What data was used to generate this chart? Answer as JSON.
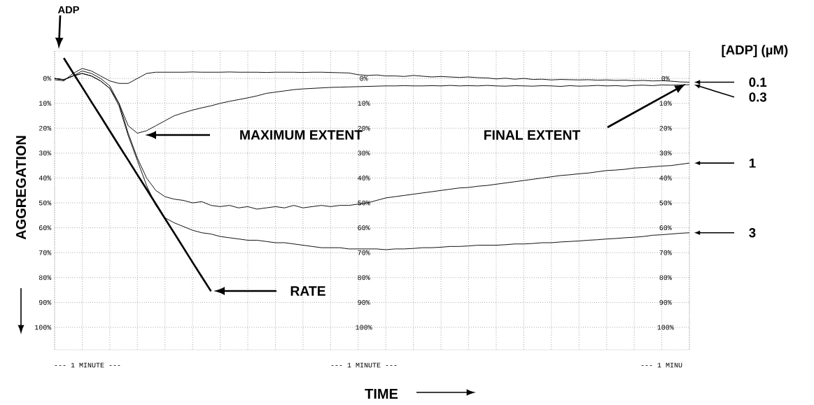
{
  "chart_data": {
    "type": "line",
    "xlabel": "TIME",
    "ylabel": "AGGREGATION",
    "legend_title": "[ADP] (µM)",
    "categories": [
      null,
      null,
      null,
      null,
      null,
      null,
      null,
      null,
      null,
      null,
      null,
      null,
      null,
      null,
      null,
      null,
      null,
      null,
      null,
      null,
      null,
      null,
      null,
      null,
      null,
      null,
      null,
      null,
      null,
      null,
      null,
      null,
      null,
      null,
      null,
      null,
      null,
      null,
      null,
      null,
      null,
      null,
      null,
      null,
      null,
      null,
      null,
      null,
      null,
      null,
      null,
      null,
      null,
      null,
      null,
      null,
      null,
      null,
      null,
      null,
      null,
      null,
      null,
      null,
      null,
      null,
      null,
      null,
      null,
      null
    ],
    "series": [
      {
        "name": "0.1",
        "color": "#000000",
        "values": [
          0.5,
          1,
          -2,
          -4,
          -3,
          -1,
          1,
          2,
          2,
          0,
          -2,
          -2.5,
          -2.5,
          -2.5,
          -2.5,
          -2.6,
          -2.5,
          -2.5,
          -2.5,
          -2.6,
          -2.5,
          -2.5,
          -2.5,
          -2.4,
          -2.5,
          -2.5,
          -2.5,
          -2.4,
          -2.5,
          -2.5,
          -2.4,
          -2.3,
          -2.2,
          -1.5,
          -1.2,
          -1.4,
          -1.0,
          -1.0,
          -0.8,
          -1.2,
          -0.9,
          -0.6,
          -0.8,
          -0.6,
          -0.4,
          -0.6,
          -0.3,
          -0.2,
          0.2,
          -0.1,
          0.3,
          0.0,
          0.4,
          0.3,
          0.6,
          0.4,
          0.5,
          0.6,
          0.5,
          0.7,
          0.6,
          0.8,
          0.7,
          0.9,
          0.8,
          1.0,
          0.9,
          1.1,
          1.4,
          1.5
        ]
      },
      {
        "name": "0.3",
        "color": "#000000",
        "values": [
          0,
          0.5,
          -1,
          -2,
          -1,
          1,
          4,
          10,
          19,
          22,
          21,
          19,
          17,
          15,
          13.8,
          12.7,
          11.8,
          11,
          10,
          9.2,
          8.5,
          7.8,
          7,
          6,
          5.5,
          5,
          4.5,
          4.2,
          4,
          3.8,
          3.6,
          3.5,
          3.4,
          3.3,
          3.2,
          3.1,
          3.0,
          3.0,
          2.9,
          3.0,
          3.0,
          2.9,
          3.0,
          2.8,
          3.0,
          2.9,
          3.0,
          2.8,
          3.0,
          3.1,
          2.9,
          3.0,
          3.1,
          2.9,
          3.0,
          3.2,
          2.9,
          3.1,
          3.0,
          2.8,
          3.0,
          2.9,
          3.1,
          2.8,
          2.7,
          2.9,
          2.6,
          2.7,
          2.6,
          2.5
        ]
      },
      {
        "name": "1",
        "color": "#000000",
        "values": [
          0,
          0.5,
          -1,
          -3,
          -2,
          0,
          3,
          10,
          22,
          32,
          40,
          45,
          47.5,
          48.5,
          49,
          50,
          49.5,
          51,
          51.5,
          51,
          52,
          51.5,
          52.5,
          52,
          51.5,
          52,
          51,
          52,
          51.5,
          51,
          51.5,
          51,
          51,
          50.5,
          50,
          49,
          48,
          47.5,
          47,
          46.5,
          46,
          45.5,
          45,
          44.5,
          44,
          43.8,
          43.3,
          43,
          42.5,
          42,
          41.5,
          41,
          40.5,
          40,
          39.5,
          39,
          38.7,
          38.3,
          38,
          37.5,
          37,
          36.8,
          36.5,
          36,
          35.8,
          35.5,
          35.2,
          35,
          34.5,
          34
        ]
      },
      {
        "name": "3",
        "color": "#000000",
        "values": [
          0,
          0.5,
          -1,
          -2,
          -1,
          1,
          4,
          11,
          23,
          33,
          43,
          51,
          56,
          58,
          59.5,
          61,
          62,
          62.5,
          63.5,
          64,
          64.5,
          65,
          65,
          65.5,
          66,
          66,
          66.5,
          67,
          67.5,
          68,
          68,
          68,
          68.5,
          68.5,
          68.5,
          68.5,
          68.8,
          68.5,
          68.5,
          68.3,
          68,
          68,
          67.8,
          67.5,
          67.5,
          67.3,
          67,
          67,
          67,
          66.8,
          66.5,
          66.5,
          66.3,
          66,
          66,
          65.7,
          65.5,
          65.3,
          65,
          64.8,
          64.5,
          64.3,
          64,
          63.8,
          63.5,
          63,
          62.8,
          62.5,
          62.2,
          62
        ]
      },
      {
        "color": "#000000",
        "values": [
          null,
          -8.2,
          -2.3,
          3.5,
          9.4,
          15.2,
          21.1,
          27.0,
          32.8,
          38.7,
          44.5,
          50.4,
          56.3,
          62.1,
          68.0,
          73.9,
          79.7,
          85.5,
          null,
          null,
          null,
          null,
          null,
          null,
          null,
          null,
          null,
          null,
          null,
          null,
          null,
          null,
          null,
          null,
          null,
          null,
          null,
          null,
          null,
          null,
          null,
          null,
          null,
          null,
          null,
          null,
          null,
          null,
          null,
          null,
          null,
          null,
          null,
          null,
          null,
          null,
          null,
          null,
          null,
          null,
          null,
          null,
          null,
          null,
          null,
          null,
          null,
          null,
          null,
          null
        ]
      }
    ],
    "ylim": [
      109,
      -11
    ],
    "yticks": [
      {
        "value": 0,
        "label": "0%"
      },
      {
        "value": 10,
        "label": "10%"
      },
      {
        "value": 20,
        "label": "20%"
      },
      {
        "value": 30,
        "label": "30%"
      },
      {
        "value": 40,
        "label": "40%"
      },
      {
        "value": 50,
        "label": "50%"
      },
      {
        "value": 60,
        "label": "60%"
      },
      {
        "value": 70,
        "label": "70%"
      },
      {
        "value": 80,
        "label": "80%"
      },
      {
        "value": 90,
        "label": "90%"
      },
      {
        "value": 100,
        "label": "100%"
      }
    ],
    "grid": true,
    "legend": "right",
    "annotations": [
      "ADP",
      "MAXIMUM EXTENT",
      "FINAL EXTENT",
      "RATE",
      "--- 1 MINUTE ---",
      "--- 1 MINUTE ---",
      "--- 1 MINU"
    ]
  }
}
